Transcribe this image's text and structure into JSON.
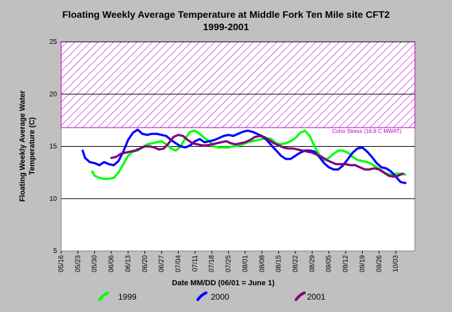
{
  "chart_data": {
    "type": "line",
    "title": "Floating Weekly Average Temperature at Middle Fork Ten Mile site CFT2",
    "subtitle": "1999-2001",
    "xlabel": "Date MM/DD (06/01 = June 1)",
    "ylabel": "Floating Weekly Average Water Temperature (C)",
    "ylabel_lines": [
      "Floating Weekly Average Water",
      "Temperature (C)"
    ],
    "ylim": [
      5,
      25
    ],
    "yticks": [
      5,
      10,
      15,
      20,
      25
    ],
    "x_ticks": [
      "05/16",
      "05/23",
      "05/30",
      "06/06",
      "06/13",
      "06/20",
      "06/27",
      "07/04",
      "07/11",
      "07/18",
      "07/25",
      "08/01",
      "08/08",
      "08/15",
      "08/22",
      "08/29",
      "09/05",
      "09/12",
      "09/19",
      "09/26",
      "10/03"
    ],
    "x_tick_day_offsets": [
      0,
      7,
      14,
      21,
      28,
      35,
      42,
      49,
      56,
      63,
      70,
      77,
      84,
      91,
      98,
      105,
      112,
      119,
      126,
      133,
      140
    ],
    "x_range_days": [
      0,
      148
    ],
    "grid": "horizontal",
    "stress_band": {
      "label": "Coho Stress (16.8 C MWAT)",
      "y_from": 16.8,
      "y_to": 25,
      "color": "#c000c0"
    },
    "series": [
      {
        "name": "1999",
        "color": "#00ff00",
        "x": [
          13,
          14,
          16,
          18,
          20,
          22,
          24,
          26,
          28,
          30,
          32,
          34,
          36,
          38,
          40,
          42,
          44,
          46,
          48,
          50,
          52,
          54,
          56,
          58,
          60,
          62,
          64,
          66,
          68,
          70,
          72,
          74,
          76,
          78,
          80,
          82,
          84,
          86,
          88,
          90,
          92,
          94,
          96,
          98,
          100,
          102,
          104,
          106,
          108,
          110,
          112,
          114,
          116,
          118,
          120,
          122,
          124,
          126,
          128,
          130,
          132,
          134,
          136,
          138,
          140,
          142,
          144
        ],
        "y": [
          12.6,
          12.2,
          12.0,
          11.9,
          11.9,
          12.0,
          12.5,
          13.3,
          14.1,
          14.5,
          14.6,
          14.9,
          15.2,
          15.3,
          15.4,
          15.5,
          15.2,
          14.8,
          14.6,
          15.0,
          15.8,
          16.4,
          16.5,
          16.2,
          15.8,
          15.5,
          15.0,
          14.9,
          14.9,
          14.9,
          15.0,
          15.1,
          15.2,
          15.4,
          15.5,
          15.6,
          15.7,
          15.8,
          15.7,
          15.3,
          15.2,
          15.3,
          15.5,
          15.8,
          16.3,
          16.5,
          16.0,
          15.0,
          14.2,
          13.7,
          13.9,
          14.3,
          14.6,
          14.6,
          14.4,
          14.0,
          13.7,
          13.6,
          13.5,
          13.3,
          13.0,
          12.7,
          12.4,
          12.3,
          12.4,
          12.4,
          12.3
        ]
      },
      {
        "name": "2000",
        "color": "#0000ff",
        "x": [
          9,
          10,
          12,
          14,
          16,
          18,
          20,
          22,
          24,
          26,
          28,
          30,
          32,
          34,
          36,
          38,
          40,
          42,
          44,
          46,
          48,
          50,
          52,
          54,
          56,
          58,
          60,
          62,
          64,
          66,
          68,
          70,
          72,
          74,
          76,
          78,
          80,
          82,
          84,
          86,
          88,
          90,
          92,
          94,
          96,
          98,
          100,
          102,
          104,
          106,
          108,
          110,
          112,
          114,
          116,
          118,
          120,
          122,
          124,
          126,
          128,
          130,
          132,
          134,
          136,
          138,
          140,
          142,
          144
        ],
        "y": [
          14.6,
          13.9,
          13.5,
          13.4,
          13.2,
          13.5,
          13.3,
          13.2,
          13.6,
          14.5,
          15.6,
          16.3,
          16.6,
          16.2,
          16.1,
          16.2,
          16.2,
          16.1,
          16.0,
          15.6,
          15.3,
          15.0,
          14.9,
          15.1,
          15.5,
          15.7,
          15.4,
          15.5,
          15.6,
          15.8,
          16.0,
          16.1,
          16.0,
          16.2,
          16.4,
          16.5,
          16.4,
          16.2,
          16.0,
          15.6,
          15.1,
          14.6,
          14.1,
          13.8,
          13.8,
          14.1,
          14.4,
          14.6,
          14.6,
          14.5,
          14.0,
          13.4,
          13.0,
          12.8,
          12.8,
          13.2,
          13.8,
          14.4,
          14.8,
          14.9,
          14.5,
          14.0,
          13.4,
          13.0,
          12.9,
          12.6,
          12.1,
          11.6,
          11.5
        ]
      },
      {
        "name": "2001",
        "color": "#800080",
        "x": [
          21,
          23,
          25,
          27,
          29,
          31,
          33,
          35,
          37,
          39,
          41,
          43,
          45,
          47,
          49,
          51,
          53,
          55,
          57,
          59,
          61,
          63,
          65,
          67,
          69,
          71,
          73,
          75,
          77,
          79,
          81,
          83,
          85,
          87,
          89,
          91,
          93,
          95,
          97,
          99,
          101,
          103,
          105,
          107,
          109,
          111,
          113,
          115,
          117,
          119,
          121,
          123,
          125,
          127,
          129,
          131,
          133,
          135,
          137,
          139,
          141,
          143
        ],
        "y": [
          13.9,
          14.0,
          14.3,
          14.4,
          14.5,
          14.6,
          14.8,
          15.0,
          15.0,
          14.9,
          14.7,
          14.8,
          15.3,
          15.9,
          16.1,
          16.0,
          15.6,
          15.3,
          15.2,
          15.1,
          15.1,
          15.2,
          15.3,
          15.4,
          15.5,
          15.3,
          15.2,
          15.3,
          15.4,
          15.6,
          15.9,
          16.0,
          15.9,
          15.6,
          15.3,
          15.1,
          14.9,
          14.8,
          14.8,
          14.7,
          14.6,
          14.5,
          14.4,
          14.2,
          14.0,
          13.7,
          13.5,
          13.3,
          13.3,
          13.3,
          13.2,
          13.2,
          13.0,
          12.8,
          12.8,
          12.9,
          12.8,
          12.5,
          12.2,
          12.1,
          12.2,
          12.4
        ]
      }
    ],
    "legend_placement": "bottom"
  }
}
